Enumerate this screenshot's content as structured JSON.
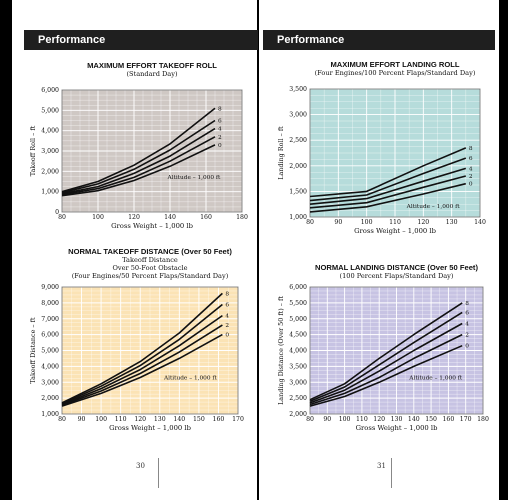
{
  "pages": {
    "left": {
      "header": "Performance",
      "page_number": "30"
    },
    "right": {
      "header": "Performance",
      "page_number": "31"
    }
  },
  "chart_data": [
    {
      "type": "line",
      "title": "MAXIMUM EFFORT TAKEOFF ROLL",
      "subtitle": [
        "(Standard Day)"
      ],
      "xlabel": "Gross Weight – 1,000 lb",
      "ylabel": "Takeoff Roll – ft",
      "xlim": [
        80,
        180
      ],
      "ylim": [
        0,
        6000
      ],
      "xticks": [
        80,
        100,
        120,
        140,
        160,
        180
      ],
      "yticks": [
        0,
        1000,
        2000,
        3000,
        4000,
        5000,
        6000
      ],
      "ytick_labels": [
        "0",
        "1,000",
        "2,000",
        "3,000",
        "4,000",
        "5,000",
        "6,000"
      ],
      "annotation": "Altitude – 1,000 ft",
      "background": "#cfc8c4",
      "series": [
        {
          "name": "0",
          "x": [
            80,
            100,
            120,
            140,
            165
          ],
          "y": [
            800,
            1050,
            1550,
            2250,
            3300
          ]
        },
        {
          "name": "2",
          "x": [
            80,
            100,
            120,
            140,
            165
          ],
          "y": [
            850,
            1150,
            1700,
            2500,
            3700
          ]
        },
        {
          "name": "4",
          "x": [
            80,
            100,
            120,
            140,
            165
          ],
          "y": [
            900,
            1250,
            1900,
            2750,
            4100
          ]
        },
        {
          "name": "6",
          "x": [
            80,
            100,
            120,
            140,
            165
          ],
          "y": [
            950,
            1380,
            2100,
            3050,
            4500
          ]
        },
        {
          "name": "8",
          "x": [
            80,
            100,
            120,
            140,
            165
          ],
          "y": [
            1000,
            1500,
            2300,
            3350,
            5100
          ]
        }
      ]
    },
    {
      "type": "line",
      "title": "MAXIMUM EFFORT LANDING ROLL",
      "subtitle": [
        "(Four Engines/100 Percent Flaps/Standard Day)"
      ],
      "xlabel": "Gross Weight – 1,000 lb",
      "ylabel": "Landing Roll – ft",
      "xlim": [
        80,
        140
      ],
      "ylim": [
        1000,
        3500
      ],
      "xticks": [
        80,
        90,
        100,
        110,
        120,
        130,
        140
      ],
      "yticks": [
        1000,
        1500,
        2000,
        2500,
        3000,
        3500
      ],
      "ytick_labels": [
        "1,000",
        "1,500",
        "2,000",
        "2,500",
        "3,000",
        "3,500"
      ],
      "annotation": "Altitude – 1,000 ft",
      "background": "#b6dcdb",
      "series": [
        {
          "name": "0",
          "x": [
            80,
            100,
            120,
            135
          ],
          "y": [
            1100,
            1200,
            1450,
            1650
          ]
        },
        {
          "name": "2",
          "x": [
            80,
            100,
            120,
            135
          ],
          "y": [
            1180,
            1280,
            1580,
            1800
          ]
        },
        {
          "name": "4",
          "x": [
            80,
            100,
            120,
            135
          ],
          "y": [
            1250,
            1360,
            1700,
            1950
          ]
        },
        {
          "name": "6",
          "x": [
            80,
            100,
            120,
            135
          ],
          "y": [
            1320,
            1430,
            1850,
            2150
          ]
        },
        {
          "name": "8",
          "x": [
            80,
            100,
            120,
            135
          ],
          "y": [
            1400,
            1500,
            2000,
            2350
          ]
        }
      ]
    },
    {
      "type": "line",
      "title": "NORMAL TAKEOFF DISTANCE (Over 50 Feet)",
      "subtitle": [
        "Takeoff Distance",
        "Over 50-Foot Obstacle",
        "(Four Engines/50 Percent Flaps/Standard Day)"
      ],
      "xlabel": "Gross Weight – 1,000 lb",
      "ylabel": "Takeoff Distance – ft",
      "xlim": [
        80,
        170
      ],
      "ylim": [
        1000,
        9000
      ],
      "xticks": [
        80,
        90,
        100,
        110,
        120,
        130,
        140,
        150,
        160,
        170
      ],
      "yticks": [
        1000,
        2000,
        3000,
        4000,
        5000,
        6000,
        7000,
        8000,
        9000
      ],
      "ytick_labels": [
        "1,000",
        "2,000",
        "3,000",
        "4,000",
        "5,000",
        "6,000",
        "7,000",
        "8,000",
        "9,000"
      ],
      "annotation": "Altitude – 1,000 ft",
      "background": "#fbe3b5",
      "series": [
        {
          "name": "0",
          "x": [
            80,
            100,
            120,
            140,
            162
          ],
          "y": [
            1500,
            2300,
            3300,
            4500,
            6000
          ]
        },
        {
          "name": "2",
          "x": [
            80,
            100,
            120,
            140,
            162
          ],
          "y": [
            1550,
            2450,
            3550,
            4900,
            6600
          ]
        },
        {
          "name": "4",
          "x": [
            80,
            100,
            120,
            140,
            162
          ],
          "y": [
            1600,
            2600,
            3800,
            5300,
            7200
          ]
        },
        {
          "name": "6",
          "x": [
            80,
            100,
            120,
            140,
            162
          ],
          "y": [
            1650,
            2750,
            4050,
            5700,
            7900
          ]
        },
        {
          "name": "8",
          "x": [
            80,
            100,
            120,
            140,
            162
          ],
          "y": [
            1700,
            2900,
            4300,
            6100,
            8600
          ]
        }
      ]
    },
    {
      "type": "line",
      "title": "NORMAL LANDING DISTANCE (Over 50 Feet)",
      "subtitle": [
        "(100 Percent Flaps/Standard Day)"
      ],
      "xlabel": "Gross Weight – 1,000 lb",
      "ylabel": "Landing Distance (Over 50 ft) – ft",
      "xlim": [
        80,
        180
      ],
      "ylim": [
        2000,
        6000
      ],
      "xticks": [
        80,
        90,
        100,
        110,
        120,
        130,
        140,
        150,
        160,
        170,
        180
      ],
      "yticks": [
        2000,
        2500,
        3000,
        3500,
        4000,
        4500,
        5000,
        5500,
        6000
      ],
      "ytick_labels": [
        "2,000",
        "2,500",
        "3,000",
        "3,500",
        "4,000",
        "4,500",
        "5,000",
        "5,500",
        "6,000"
      ],
      "annotation": "Altitude – 1,000 ft",
      "background": "#c7c3e3",
      "series": [
        {
          "name": "0",
          "x": [
            80,
            100,
            120,
            140,
            168
          ],
          "y": [
            2250,
            2550,
            3000,
            3500,
            4150
          ]
        },
        {
          "name": "2",
          "x": [
            80,
            100,
            120,
            140,
            168
          ],
          "y": [
            2300,
            2650,
            3150,
            3750,
            4500
          ]
        },
        {
          "name": "4",
          "x": [
            80,
            100,
            120,
            140,
            168
          ],
          "y": [
            2350,
            2750,
            3350,
            4000,
            4850
          ]
        },
        {
          "name": "6",
          "x": [
            80,
            100,
            120,
            140,
            168
          ],
          "y": [
            2400,
            2850,
            3550,
            4250,
            5200
          ]
        },
        {
          "name": "8",
          "x": [
            80,
            100,
            120,
            140,
            168
          ],
          "y": [
            2450,
            2950,
            3750,
            4500,
            5500
          ]
        }
      ]
    }
  ]
}
